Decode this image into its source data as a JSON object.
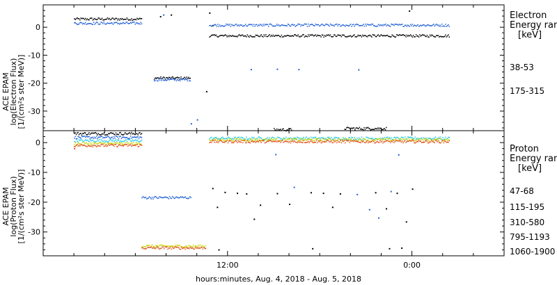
{
  "chart_data": {
    "type": "scatter",
    "xlabel": "hours:minutes, Aug.  4, 2018 - Aug.  5, 2018",
    "x_ticks": [
      "12:00",
      "0:00"
    ],
    "panels": [
      {
        "ylabel_lines": [
          "ACE EPAM",
          "log(Electron Flux)",
          "[1/(cm²s ster MeV)]"
        ],
        "ylim": [
          -37,
          8
        ],
        "y_ticks": [
          0,
          -10,
          -20,
          -30
        ],
        "legend_title": [
          "Electron",
          "Energy ran",
          "[keV]"
        ],
        "series": [
          {
            "name": "38-53",
            "color": "#000000",
            "segments": [
              [
                2.0,
                6.4,
                3.1
              ],
              [
                7.2,
                9.6,
                -18.0
              ],
              [
                10.8,
                26.4,
                -2.9
              ]
            ],
            "extra_points": [
              [
                8.3,
                4.6
              ],
              [
                10.8,
                5.3
              ],
              [
                11.0,
                0.8
              ],
              [
                7.6,
                4.0
              ],
              [
                10.6,
                -22.8
              ],
              [
                23.8,
                6.0
              ]
            ]
          },
          {
            "name": "175-315",
            "color": "#1f5fd6",
            "segments": [
              [
                2.0,
                6.4,
                1.6
              ],
              [
                7.2,
                9.6,
                -18.6
              ],
              [
                10.8,
                26.4,
                0.9
              ]
            ],
            "extra_points": [
              [
                7.8,
                4.6
              ],
              [
                9.6,
                -34.3
              ],
              [
                10.0,
                -32.9
              ],
              [
                13.5,
                -14.9
              ],
              [
                15.2,
                -14.8
              ],
              [
                16.6,
                -14.9
              ],
              [
                20.5,
                -15.0
              ]
            ]
          }
        ]
      },
      {
        "ylabel_lines": [
          "ACE EPAM",
          "log(Proton Flux)",
          "[1/(cm²s ster MeV)]"
        ],
        "ylim": [
          -38,
          4
        ],
        "y_ticks": [
          0,
          -10,
          -20,
          -30
        ],
        "legend_title": [
          "Proton",
          "Energy ran",
          "[keV]"
        ],
        "series": [
          {
            "name": "47-68",
            "color": "#000000",
            "segments": [
              [
                2.0,
                6.4,
                3.2
              ],
              [
                15.0,
                16.2,
                4.5
              ],
              [
                19.6,
                22.3,
                4.9
              ]
            ],
            "extra_points": [
              [
                11.0,
                -15.2
              ],
              [
                11.3,
                -21.5
              ],
              [
                11.8,
                -16.5
              ],
              [
                12.6,
                -16.8
              ],
              [
                13.2,
                -17.0
              ],
              [
                13.7,
                -25.5
              ],
              [
                14.1,
                -20.8
              ],
              [
                15.2,
                -16.9
              ],
              [
                16.0,
                -20.5
              ],
              [
                17.4,
                -16.6
              ],
              [
                18.2,
                -16.8
              ],
              [
                18.8,
                -21.5
              ],
              [
                19.3,
                -17.0
              ],
              [
                21.6,
                -16.6
              ],
              [
                22.3,
                -22.0
              ],
              [
                23.0,
                -16.8
              ],
              [
                23.6,
                -26.4
              ],
              [
                24.0,
                -15.4
              ],
              [
                11.4,
                -35.8
              ],
              [
                17.5,
                -35.4
              ],
              [
                22.5,
                -35.4
              ],
              [
                23.3,
                -35.2
              ]
            ]
          },
          {
            "name": "115-195",
            "color": "#1f5fd6",
            "segments": [
              [
                2.0,
                6.4,
                1.9
              ],
              [
                6.4,
                9.6,
                -18.3
              ]
            ],
            "extra_points": [
              [
                15.1,
                -3.8
              ],
              [
                16.3,
                -14.8
              ],
              [
                20.4,
                -17.2
              ],
              [
                21.2,
                -22.3
              ],
              [
                21.8,
                -25.1
              ],
              [
                22.6,
                -16.2
              ],
              [
                23.1,
                -3.9
              ]
            ]
          },
          {
            "name": "310-580",
            "color": "#22c8e6",
            "segments": [
              [
                2.0,
                6.4,
                0.8
              ],
              [
                10.8,
                26.4,
                1.6
              ]
            ],
            "extra_points": []
          },
          {
            "name": "795-1193",
            "color": "#c8d400",
            "segments": [
              [
                2.0,
                6.4,
                -0.2
              ],
              [
                6.4,
                10.6,
                -34.6
              ],
              [
                10.8,
                26.4,
                1.1
              ]
            ],
            "extra_points": []
          },
          {
            "name": "1060-1900",
            "color": "#e0501c",
            "segments": [
              [
                2.0,
                6.4,
                -0.8
              ],
              [
                6.4,
                10.6,
                -35.2
              ],
              [
                10.8,
                26.4,
                0.5
              ]
            ],
            "extra_points": [
              [
                2.0,
                -1.8
              ]
            ]
          }
        ]
      }
    ]
  }
}
